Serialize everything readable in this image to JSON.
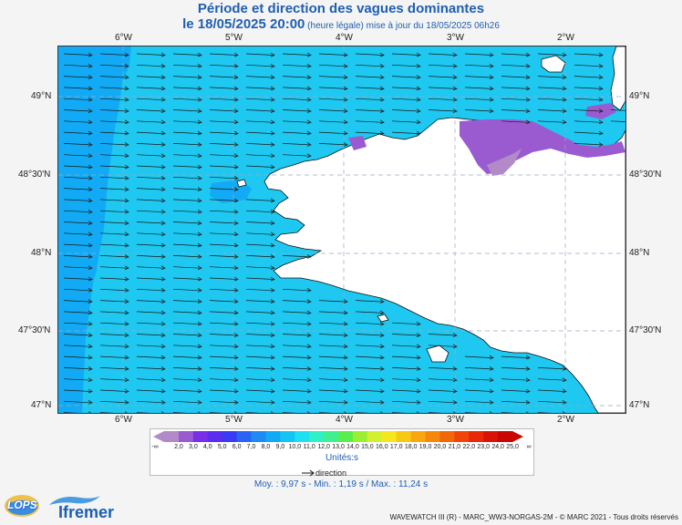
{
  "title_line1": "Période et direction des vagues dominantes",
  "title_line2_main": "le 18/05/2025 20:00",
  "title_line2_small": " (heure légale) mise à jour du 18/05/2025 06h26",
  "lon_labels": [
    "6°W",
    "5°W",
    "4°W",
    "3°W",
    "2°W"
  ],
  "lat_labels": [
    "49°N",
    "48°30'N",
    "48°N",
    "47°30'N",
    "47°N"
  ],
  "colorbar": {
    "labels": [
      "2,0",
      "3,0",
      "4,0",
      "5,0",
      "6,0",
      "7,0",
      "8,0",
      "9,0",
      "10,0",
      "11,0",
      "12,0",
      "13,0",
      "14,0",
      "15,0",
      "16,0",
      "17,0",
      "18,0",
      "19,0",
      "20,0",
      "21,0",
      "22,0",
      "23,0",
      "24,0",
      "25,0"
    ],
    "left_symbol": "-∞",
    "right_symbol": "∞",
    "colors": [
      "#b38ac8",
      "#9a5bd0",
      "#7a2ee8",
      "#5a2ef0",
      "#3a3cf5",
      "#2a64f5",
      "#1e8af5",
      "#12aaf5",
      "#14c4f2",
      "#1ee0f0",
      "#30f0c8",
      "#40f090",
      "#58ee50",
      "#9af030",
      "#d2f030",
      "#f5e61e",
      "#f8c814",
      "#f8a80e",
      "#f5880a",
      "#f26808",
      "#f04408",
      "#e82806",
      "#d81404",
      "#c80602"
    ],
    "units": "Unités:s"
  },
  "direction_label": "direction",
  "stats": "Moy. : 9,97 s   -   Min. : 1,19 s / Max. : 11,24 s",
  "footer": "WAVEWATCH III (R) - MARC_WW3-NORGAS-2M - © MARC 2021 - Tous droits réservés",
  "logos": {
    "lops": "LOPS",
    "ifremer": "Ifremer"
  },
  "map_colors": {
    "sea": "#1ec8f0",
    "sea_offshore": "#12aaf5",
    "sea_low_period": "#9a5bd0",
    "sea_low_period_light": "#b38ac8",
    "land": "#ffffff",
    "gridline": "#9aa8c8",
    "arrow": "#1a1a1a"
  }
}
